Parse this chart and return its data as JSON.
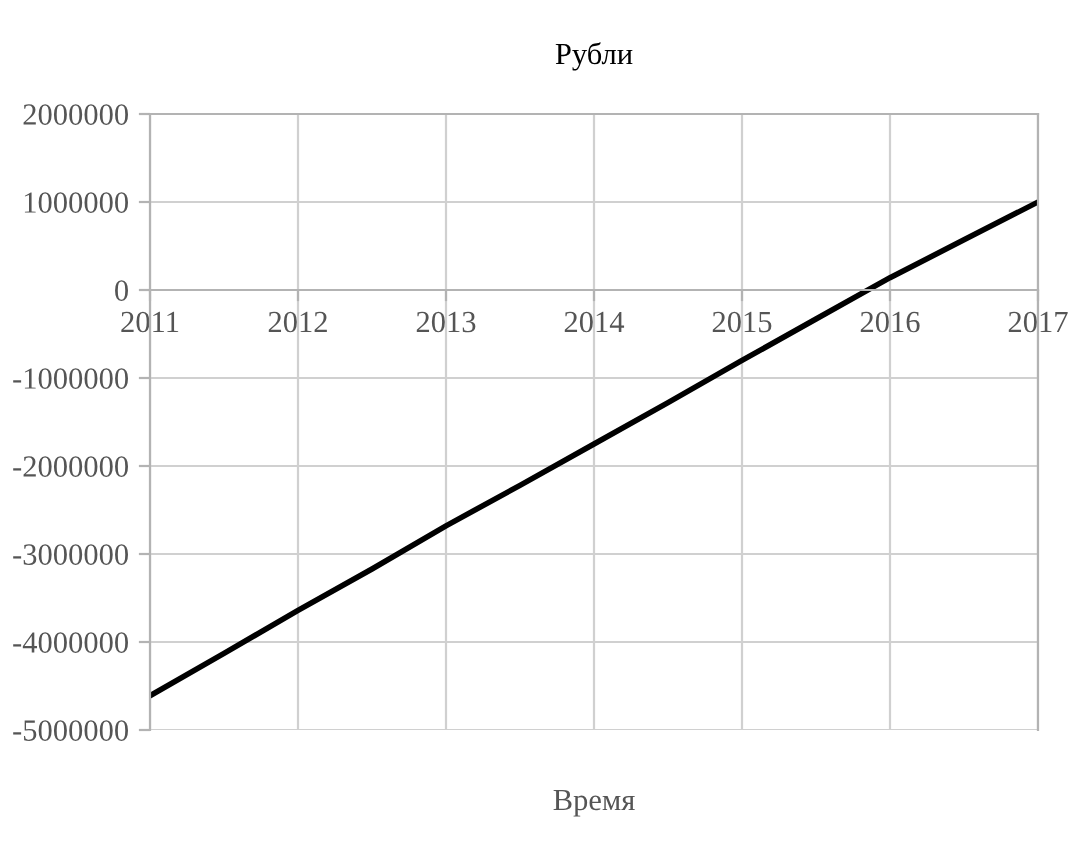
{
  "chart_data": {
    "type": "line",
    "title": "Рубли",
    "xlabel": "Время",
    "x": [
      2011,
      2011.5,
      2012,
      2012.5,
      2013,
      2013.5,
      2014,
      2014.5,
      2015,
      2015.5,
      2016,
      2016.5,
      2017
    ],
    "series": [
      {
        "color": "#000000",
        "values": [
          -4610000,
          -4130000,
          -3640000,
          -3170000,
          -2680000,
          -2220000,
          -1750000,
          -1280000,
          -800000,
          -330000,
          140000,
          570000,
          1000000
        ]
      }
    ],
    "xlim": [
      2011,
      2017
    ],
    "xticks": [
      2011,
      2012,
      2013,
      2014,
      2015,
      2016,
      2017
    ],
    "ylim": [
      -5000000,
      2000000
    ],
    "yticks": [
      -5000000,
      -4000000,
      -3000000,
      -2000000,
      -1000000,
      0,
      1000000,
      2000000
    ],
    "grid": true,
    "marker": "none",
    "line_style": "solid"
  }
}
